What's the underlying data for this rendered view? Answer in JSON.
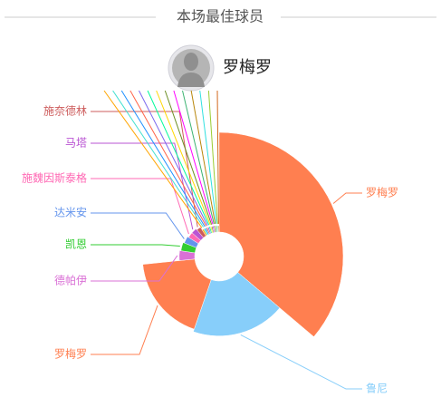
{
  "chart_data": {
    "type": "pie",
    "rose": true,
    "title": "本场最佳球员",
    "featured_player": "罗梅罗",
    "categories": [
      "罗梅罗",
      "鲁尼",
      "罗梅罗",
      "德帕伊",
      "凯恩",
      "达米安",
      "施魏因斯泰格",
      "马塔",
      "施奈德林",
      null,
      null,
      null,
      null,
      null,
      null,
      null,
      null,
      null,
      null,
      null,
      null,
      null,
      null
    ],
    "values": [
      36,
      19,
      18,
      4,
      3.5,
      3,
      2.5,
      2.5,
      2,
      0.8,
      0.8,
      0.7,
      0.7,
      0.7,
      0.7,
      0.6,
      0.6,
      0.6,
      0.6,
      0.6,
      0.6,
      0.5,
      0.5
    ],
    "colors": [
      "#ff7f50",
      "#87cefa",
      "#ff7f50",
      "#da70d6",
      "#32cd32",
      "#6495ed",
      "#ff69b4",
      "#ba55d3",
      "#cd5c5c",
      "#ffa500",
      "#40e0d0",
      "#1e90ff",
      "#ff6347",
      "#7b68ee",
      "#00fa9a",
      "#ffd700",
      "#6b8e23",
      "#ff00ff",
      "#3cb371",
      "#b8860b",
      "#30e0e0",
      "#9acd32",
      "#d2691e"
    ]
  }
}
